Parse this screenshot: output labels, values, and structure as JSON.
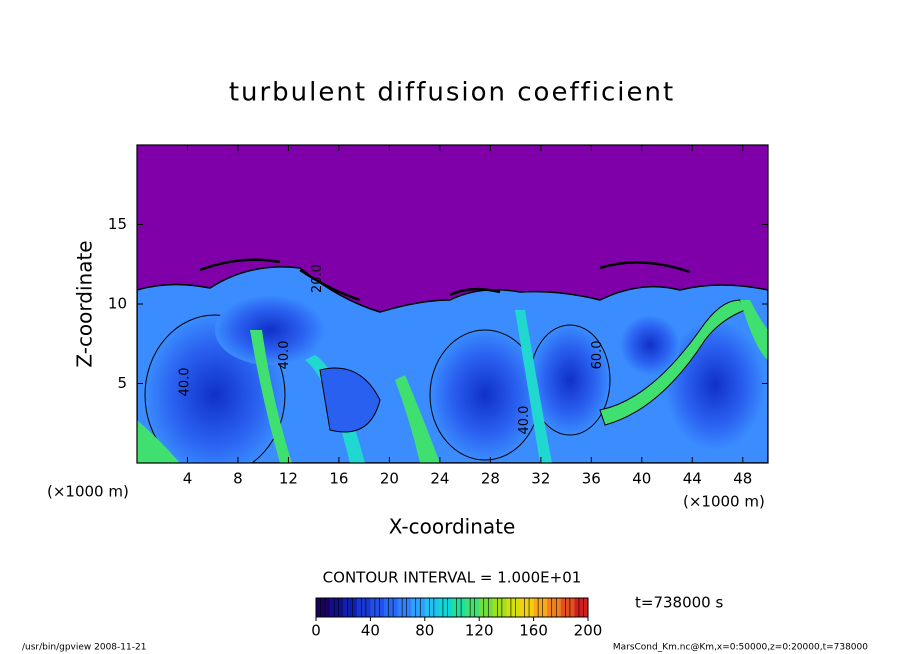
{
  "chart_data": {
    "type": "contour",
    "title": "turbulent diffusion coefficient",
    "xlabel": "X-coordinate",
    "ylabel": "Z-coordinate",
    "x_unit": "(×1000 m)",
    "y_unit": "(×1000 m)",
    "xlim": [
      0,
      50
    ],
    "ylim": [
      0,
      20
    ],
    "xticks": [
      4,
      8,
      12,
      16,
      20,
      24,
      28,
      32,
      36,
      40,
      44,
      48
    ],
    "yticks": [
      5,
      10,
      15
    ],
    "contour_interval": "CONTOUR INTERVAL = 1.000E+01",
    "time_label": "t=738000 s",
    "contour_labels": [
      {
        "x": 3.8,
        "z": 5.1,
        "value": 40,
        "label": "40.0"
      },
      {
        "x": 11.7,
        "z": 6.8,
        "value": 40,
        "label": "40.0"
      },
      {
        "x": 30.7,
        "z": 2.7,
        "value": 40,
        "label": "40.0"
      },
      {
        "x": 36.5,
        "z": 6.8,
        "value": 60,
        "label": "60.0"
      },
      {
        "x": 14.3,
        "z": 11.6,
        "value": 20,
        "label": "20.0"
      }
    ],
    "colorbar": {
      "lim": [
        0,
        200
      ],
      "ticks": [
        0,
        40,
        80,
        120,
        160,
        200
      ],
      "colors": [
        "#1a0060",
        "#10108a",
        "#1020b0",
        "#1838d0",
        "#2050e8",
        "#2868f8",
        "#3080ff",
        "#30a0ff",
        "#20c0f0",
        "#10d8d8",
        "#20e0a0",
        "#40e070",
        "#70e040",
        "#a0e020",
        "#d0e010",
        "#f0d010",
        "#f8a818",
        "#f08020",
        "#e05020",
        "#d02020"
      ]
    },
    "footer_left": "/usr/bin/gpview   2008-11-21",
    "footer_right": "MarsCond_Km.nc@Km,x=0:50000,z=0:20000,t=738000"
  }
}
